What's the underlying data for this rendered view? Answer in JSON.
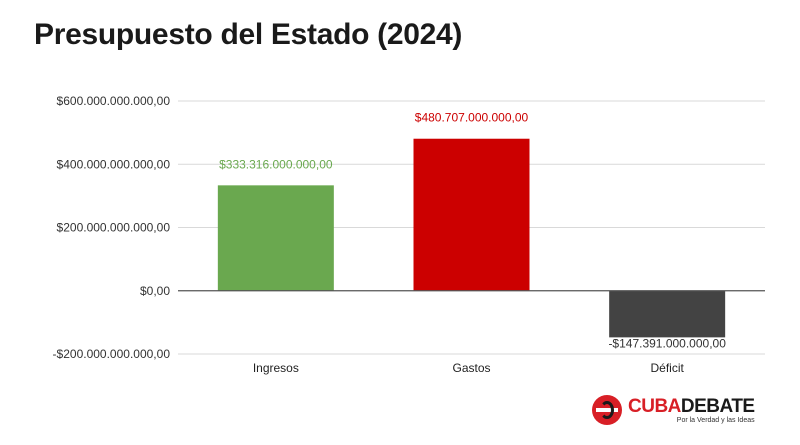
{
  "page": {
    "title": "Presupuesto del Estado (2024)"
  },
  "logo": {
    "name_part1": "CUBA",
    "name_part2": "DEBATE",
    "tagline": "Por la Verdad y las Ideas",
    "icon": "cubadebate-logo-icon"
  },
  "chart_data": {
    "type": "bar",
    "title": "Presupuesto del Estado (2024)",
    "categories": [
      "Ingresos",
      "Gastos",
      "Déficit"
    ],
    "values": [
      333316000000,
      480707000000,
      -147391000000
    ],
    "value_labels": [
      "$333.316.000.000,00",
      "$480.707.000.000,00",
      "-$147.391.000.000,00"
    ],
    "colors": [
      "#6aa84f",
      "#cc0000",
      "#434343"
    ],
    "ylim": [
      -200000000000,
      600000000000
    ],
    "yticks": [
      600000000000,
      400000000000,
      200000000000,
      0,
      -200000000000
    ],
    "ytick_labels": [
      "$600.000.000.000,00",
      "$400.000.000.000,00",
      "$200.000.000.000,00",
      "$0,00",
      "-$200.000.000.000,00"
    ],
    "xlabel": "",
    "ylabel": "",
    "grid": true,
    "legend": "none"
  }
}
